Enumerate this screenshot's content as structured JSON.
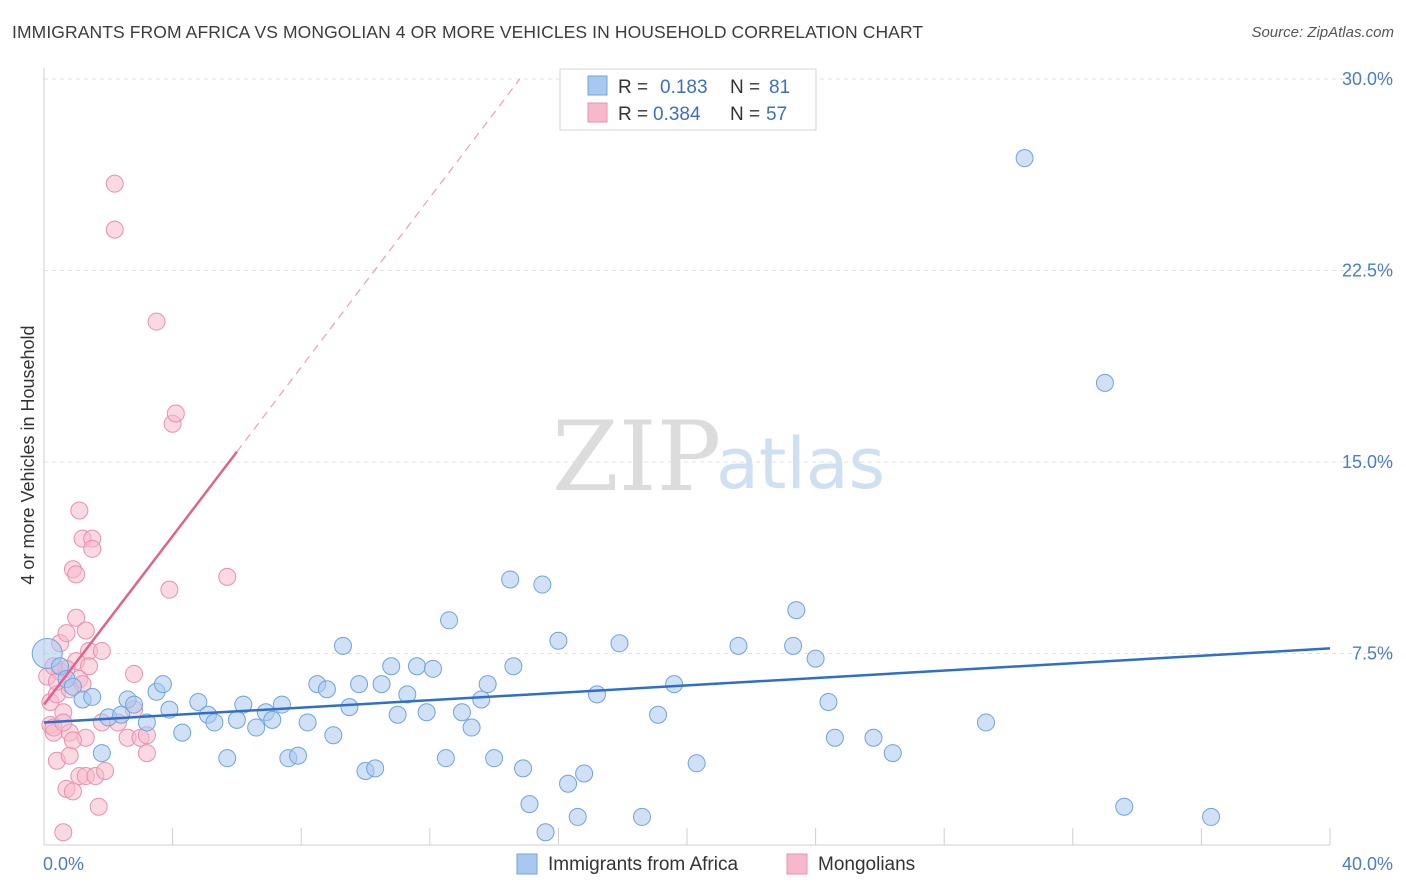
{
  "title": "IMMIGRANTS FROM AFRICA VS MONGOLIAN 4 OR MORE VEHICLES IN HOUSEHOLD CORRELATION CHART",
  "source": "Source: ZipAtlas.com",
  "watermark": {
    "zip": "ZIP",
    "atlas": "atlas"
  },
  "colors": {
    "blue": "#6fa3e0",
    "blue_fill": "#a9c8ef",
    "blue_line": "#2f6fc9",
    "pink": "#ec8fae",
    "pink_fill": "#f5b9cc",
    "pink_line": "#e0638e"
  },
  "legend": {
    "r_label": "R =",
    "n_label": "N =",
    "rows": [
      {
        "r": "0.183",
        "n": "81"
      },
      {
        "r": "0.384",
        "n": "57"
      }
    ]
  },
  "bottom_legend": [
    "Immigrants from Africa",
    "Mongolians"
  ],
  "chart_data": {
    "type": "scatter",
    "ylabel": "4 or more Vehicles in Household",
    "xlim": [
      0,
      40
    ],
    "ylim": [
      0,
      30
    ],
    "x_tick_labels": [
      "0.0%",
      "40.0%"
    ],
    "y_tick_labels": [
      "7.5%",
      "15.0%",
      "22.5%",
      "30.0%"
    ],
    "y_ticks": [
      7.5,
      15,
      22.5,
      30
    ],
    "series": [
      {
        "name": "Immigrants from Africa",
        "trend": {
          "x": [
            0,
            40
          ],
          "y": [
            4.8,
            7.7
          ]
        },
        "points": [
          [
            0.1,
            7.5
          ],
          [
            0.5,
            7.0
          ],
          [
            0.7,
            6.5
          ],
          [
            0.9,
            6.2
          ],
          [
            1.2,
            5.7
          ],
          [
            1.5,
            5.8
          ],
          [
            1.8,
            3.6
          ],
          [
            2.0,
            5.0
          ],
          [
            2.4,
            5.1
          ],
          [
            2.6,
            5.7
          ],
          [
            2.8,
            5.5
          ],
          [
            3.2,
            4.8
          ],
          [
            3.5,
            6.0
          ],
          [
            3.7,
            6.3
          ],
          [
            3.9,
            5.3
          ],
          [
            4.3,
            4.4
          ],
          [
            4.8,
            5.6
          ],
          [
            5.1,
            5.1
          ],
          [
            5.3,
            4.8
          ],
          [
            5.7,
            3.4
          ],
          [
            6.0,
            4.9
          ],
          [
            6.2,
            5.5
          ],
          [
            6.6,
            4.6
          ],
          [
            6.9,
            5.2
          ],
          [
            7.1,
            4.9
          ],
          [
            7.4,
            5.5
          ],
          [
            7.6,
            3.4
          ],
          [
            7.9,
            3.5
          ],
          [
            8.2,
            4.8
          ],
          [
            8.5,
            6.3
          ],
          [
            8.8,
            6.1
          ],
          [
            9.0,
            4.3
          ],
          [
            9.3,
            7.8
          ],
          [
            9.5,
            5.4
          ],
          [
            9.8,
            6.3
          ],
          [
            10.0,
            2.9
          ],
          [
            10.3,
            3.0
          ],
          [
            10.5,
            6.3
          ],
          [
            10.8,
            7.0
          ],
          [
            11.0,
            5.1
          ],
          [
            11.3,
            5.9
          ],
          [
            11.6,
            7.0
          ],
          [
            11.9,
            5.2
          ],
          [
            12.1,
            6.9
          ],
          [
            12.5,
            3.4
          ],
          [
            12.6,
            8.8
          ],
          [
            13.0,
            5.2
          ],
          [
            13.3,
            4.6
          ],
          [
            13.6,
            5.7
          ],
          [
            13.8,
            6.3
          ],
          [
            14.0,
            3.4
          ],
          [
            14.5,
            10.4
          ],
          [
            14.6,
            7.0
          ],
          [
            14.9,
            3.0
          ],
          [
            15.1,
            1.6
          ],
          [
            15.5,
            10.2
          ],
          [
            15.6,
            0.5
          ],
          [
            16.0,
            8.0
          ],
          [
            16.3,
            2.4
          ],
          [
            16.6,
            1.1
          ],
          [
            16.8,
            2.8
          ],
          [
            17.2,
            5.9
          ],
          [
            17.9,
            7.9
          ],
          [
            18.6,
            1.1
          ],
          [
            19.1,
            5.1
          ],
          [
            19.6,
            6.3
          ],
          [
            20.3,
            3.2
          ],
          [
            21.6,
            7.8
          ],
          [
            23.3,
            7.8
          ],
          [
            23.4,
            9.2
          ],
          [
            24.0,
            7.3
          ],
          [
            24.4,
            5.6
          ],
          [
            24.6,
            4.2
          ],
          [
            25.8,
            4.2
          ],
          [
            26.4,
            3.6
          ],
          [
            29.3,
            4.8
          ],
          [
            30.5,
            26.9
          ],
          [
            33.0,
            18.1
          ],
          [
            33.6,
            1.5
          ],
          [
            36.3,
            1.1
          ]
        ]
      },
      {
        "name": "Mongolians",
        "trend_solid": {
          "x": [
            0,
            6.0
          ],
          "y": [
            5.5,
            15.4
          ]
        },
        "trend_dashed": {
          "x": [
            6.0,
            14.8
          ],
          "y": [
            15.4,
            30.0
          ]
        },
        "points": [
          [
            0.1,
            6.6
          ],
          [
            0.2,
            5.6
          ],
          [
            0.2,
            4.7
          ],
          [
            0.3,
            4.4
          ],
          [
            0.4,
            5.9
          ],
          [
            0.4,
            3.3
          ],
          [
            0.5,
            7.9
          ],
          [
            0.6,
            0.5
          ],
          [
            0.6,
            5.2
          ],
          [
            0.7,
            2.2
          ],
          [
            0.7,
            8.3
          ],
          [
            0.8,
            3.5
          ],
          [
            0.8,
            4.4
          ],
          [
            0.9,
            10.8
          ],
          [
            0.9,
            2.1
          ],
          [
            1.0,
            10.6
          ],
          [
            1.0,
            8.9
          ],
          [
            1.0,
            7.2
          ],
          [
            1.1,
            13.1
          ],
          [
            1.1,
            6.5
          ],
          [
            1.1,
            2.7
          ],
          [
            1.2,
            12.0
          ],
          [
            1.2,
            6.3
          ],
          [
            1.3,
            4.2
          ],
          [
            1.3,
            8.4
          ],
          [
            1.3,
            2.7
          ],
          [
            1.4,
            7.6
          ],
          [
            1.4,
            7.0
          ],
          [
            1.5,
            12.0
          ],
          [
            1.5,
            11.6
          ],
          [
            1.6,
            2.7
          ],
          [
            1.7,
            1.5
          ],
          [
            1.8,
            7.6
          ],
          [
            1.8,
            4.8
          ],
          [
            1.9,
            2.9
          ],
          [
            2.2,
            24.1
          ],
          [
            2.2,
            25.9
          ],
          [
            2.3,
            4.8
          ],
          [
            2.6,
            4.2
          ],
          [
            2.8,
            5.3
          ],
          [
            2.8,
            6.7
          ],
          [
            3.0,
            4.2
          ],
          [
            3.2,
            4.3
          ],
          [
            3.2,
            3.6
          ],
          [
            3.5,
            20.5
          ],
          [
            3.9,
            10.0
          ],
          [
            4.0,
            16.5
          ],
          [
            4.1,
            16.9
          ],
          [
            5.7,
            10.5
          ],
          [
            0.3,
            4.6
          ],
          [
            0.5,
            6.8
          ],
          [
            0.6,
            4.8
          ],
          [
            0.7,
            6.9
          ],
          [
            0.8,
            6.1
          ],
          [
            0.3,
            7.0
          ],
          [
            0.4,
            6.4
          ],
          [
            0.9,
            4.1
          ]
        ]
      }
    ]
  }
}
